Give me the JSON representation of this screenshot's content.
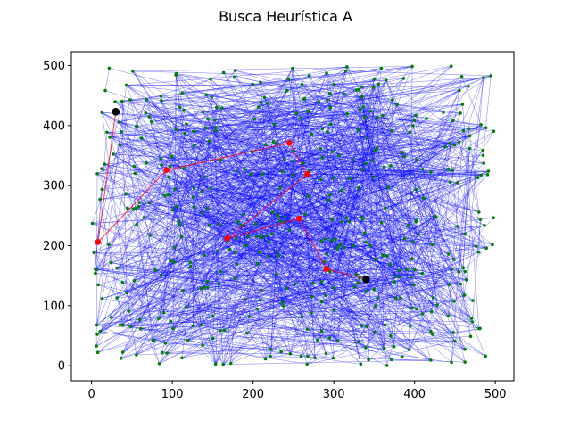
{
  "chart_data": {
    "type": "scatter",
    "title": "Busca Heurística A",
    "xlabel": "",
    "ylabel": "",
    "xlim": [
      -25,
      523
    ],
    "ylim": [
      -25,
      523
    ],
    "x_ticks": [
      0,
      100,
      200,
      300,
      400,
      500
    ],
    "y_ticks": [
      0,
      100,
      200,
      300,
      400,
      500
    ],
    "grid": false,
    "legend": "none",
    "colors": {
      "edges": "#0000ff",
      "nodes": "#008000",
      "path": "#ff0000",
      "endpoints": "#000000",
      "axes": "#000000",
      "background": "#ffffff"
    },
    "background_graph": {
      "node_count": 480,
      "edge_count": 1500,
      "x_range": [
        0,
        500
      ],
      "y_range": [
        0,
        500
      ]
    },
    "path": {
      "start": [
        30,
        423
      ],
      "goal": [
        340,
        144
      ],
      "points": [
        [
          30,
          423
        ],
        [
          8,
          206
        ],
        [
          93,
          326
        ],
        [
          245,
          371
        ],
        [
          267,
          319
        ],
        [
          168,
          212
        ],
        [
          257,
          245
        ],
        [
          291,
          161
        ],
        [
          340,
          144
        ]
      ]
    }
  }
}
